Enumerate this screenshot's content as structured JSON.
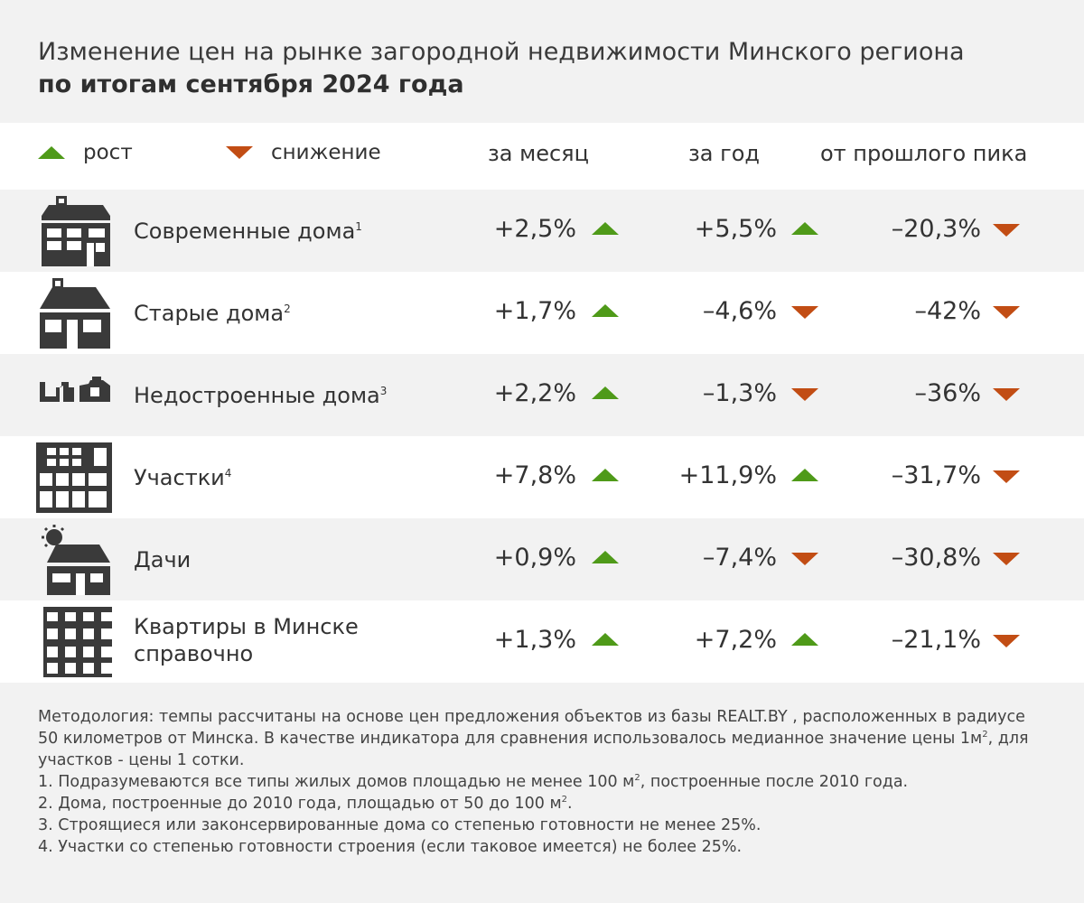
{
  "title": {
    "line1": "Изменение цен на рынке загородной недвижимости Минского региона",
    "line2": "по итогам сентября 2024 года"
  },
  "legend": {
    "up_label": "рост",
    "down_label": "снижение",
    "up_color": "#4f9a19",
    "down_color": "#c24d14"
  },
  "columns": {
    "month": "за месяц",
    "year": "за год",
    "peak": "от прошлого пика"
  },
  "chart_data": {
    "type": "table",
    "columns": [
      "за месяц",
      "за год",
      "от прошлого пика"
    ],
    "rows": [
      {
        "icon": "modern-house-icon",
        "label": "Современные дома",
        "note": "1",
        "month": "+2,5%",
        "month_dir": "up",
        "year": "+5,5%",
        "year_dir": "up",
        "peak": "–20,3%",
        "peak_dir": "down"
      },
      {
        "icon": "old-house-icon",
        "label": "Старые дома",
        "note": "2",
        "month": "+1,7%",
        "month_dir": "up",
        "year": "–4,6%",
        "year_dir": "down",
        "peak": "–42%",
        "peak_dir": "down"
      },
      {
        "icon": "unfinished-house-icon",
        "label": "Недостроенные дома",
        "note": "3",
        "month": "+2,2%",
        "month_dir": "up",
        "year": "–1,3%",
        "year_dir": "down",
        "peak": "–36%",
        "peak_dir": "down"
      },
      {
        "icon": "land-plot-icon",
        "label": "Участки",
        "note": "4",
        "month": "+7,8%",
        "month_dir": "up",
        "year": "+11,9%",
        "year_dir": "up",
        "peak": "–31,7%",
        "peak_dir": "down"
      },
      {
        "icon": "dacha-icon",
        "label": "Дачи",
        "note": "",
        "month": "+0,9%",
        "month_dir": "up",
        "year": "–7,4%",
        "year_dir": "down",
        "peak": "–30,8%",
        "peak_dir": "down"
      },
      {
        "icon": "apartment-building-icon",
        "label": "Квартиры в Минске",
        "label2": "справочно",
        "note": "",
        "month": "+1,3%",
        "month_dir": "up",
        "year": "+7,2%",
        "year_dir": "up",
        "peak": "–21,1%",
        "peak_dir": "down"
      }
    ]
  },
  "footnotes": {
    "methodology_a": "Методология: темпы рассчитаны на основе цен предложения объектов из базы REALT.BY , расположенных в радиусе 50 километров от Минска. В качестве индикатора для сравнения использовалось медианное значение цены 1м",
    "methodology_sup": "2",
    "methodology_b": ", для участков  - цены 1 сотки.",
    "note1_a": "1. Подразумеваются все типы жилых домов площадью не менее 100 м",
    "note1_sup": "2",
    "note1_b": ", построенные после 2010 года.",
    "note2_a": "2. Дома, построенные до 2010 года, площадью от 50 до 100 м",
    "note2_sup": "2",
    "note2_b": ".",
    "note3": "3. Строящиеся или законсервированные дома со степенью готовности не менее 25%.",
    "note4": "4. Участки со степенью готовности строения (если таковое имеется) не более 25%."
  }
}
